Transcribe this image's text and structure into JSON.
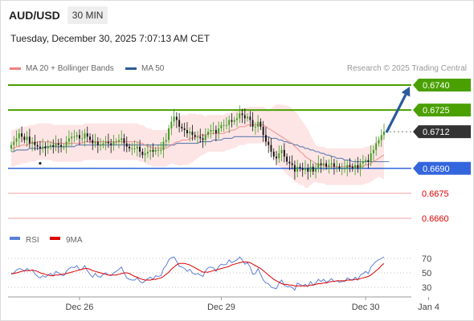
{
  "header": {
    "pair": "AUD/USD",
    "timeframe": "30 MIN",
    "datetime": "Tuesday, December 30, 2025 7:07:13 AM CET"
  },
  "legend": {
    "ma20_label": "MA 20 + Bollinger Bands",
    "ma20_color": "#f08080",
    "ma50_label": "MA 50",
    "ma50_color": "#2c5a9c"
  },
  "credit": "Research © 2025 Trading Central",
  "colors": {
    "green": "#4aa000",
    "blue": "#3366dd",
    "red": "#dd0000",
    "bull": "#3a9a1a",
    "bear": "#111111",
    "arrow": "#2c5a9c",
    "current": "#333333"
  },
  "chart_data": [
    {
      "type": "candlestick",
      "title": "AUD/USD 30 MIN",
      "ylim": [
        0.665,
        0.6745
      ],
      "x_ticks": [
        "Dec 26",
        "Dec 29",
        "Dec 30",
        "Jan 4"
      ],
      "x_tick_index": [
        26,
        80,
        135,
        159
      ],
      "levels": [
        {
          "value": 0.674,
          "label": "0.6740",
          "kind": "resistance"
        },
        {
          "value": 0.6725,
          "label": "0.6725",
          "kind": "resistance"
        },
        {
          "value": 0.6712,
          "label": "0.6712",
          "kind": "current"
        },
        {
          "value": 0.669,
          "label": "0.6690",
          "kind": "pivot"
        },
        {
          "value": 0.6675,
          "label": "0.6675",
          "kind": "support"
        },
        {
          "value": 0.666,
          "label": "0.6660",
          "kind": "support"
        }
      ],
      "close": [
        0.6704,
        0.6706,
        0.6708,
        0.6711,
        0.6709,
        0.6707,
        0.6709,
        0.6705,
        0.6706,
        0.6704,
        0.6703,
        0.6702,
        0.6703,
        0.6702,
        0.6703,
        0.6704,
        0.6703,
        0.6705,
        0.6704,
        0.6703,
        0.6703,
        0.6706,
        0.6708,
        0.6709,
        0.6709,
        0.671,
        0.6708,
        0.6708,
        0.6711,
        0.6709,
        0.6707,
        0.6705,
        0.6706,
        0.6704,
        0.6704,
        0.6705,
        0.6706,
        0.6705,
        0.6704,
        0.6706,
        0.6706,
        0.6707,
        0.6708,
        0.6705,
        0.6703,
        0.6702,
        0.6702,
        0.6702,
        0.6703,
        0.67,
        0.6698,
        0.6699,
        0.67,
        0.6701,
        0.67,
        0.6701,
        0.6701,
        0.6701,
        0.6706,
        0.6707,
        0.6714,
        0.6718,
        0.6721,
        0.6719,
        0.6715,
        0.6714,
        0.6713,
        0.6711,
        0.6712,
        0.671,
        0.6709,
        0.6709,
        0.6708,
        0.6707,
        0.671,
        0.6712,
        0.6713,
        0.6713,
        0.6711,
        0.6714,
        0.6716,
        0.6716,
        0.6716,
        0.6719,
        0.6718,
        0.6719,
        0.672,
        0.6723,
        0.6722,
        0.672,
        0.6721,
        0.6719,
        0.6715,
        0.6715,
        0.6718,
        0.6715,
        0.671,
        0.6706,
        0.6704,
        0.67,
        0.6697,
        0.6696,
        0.6699,
        0.6701,
        0.6697,
        0.6694,
        0.6693,
        0.6692,
        0.6688,
        0.6691,
        0.669,
        0.6689,
        0.669,
        0.6688,
        0.6691,
        0.6688,
        0.669,
        0.6693,
        0.6692,
        0.6693,
        0.6691,
        0.6692,
        0.6693,
        0.6691,
        0.6691,
        0.669,
        0.669,
        0.669,
        0.6692,
        0.6691,
        0.669,
        0.6692,
        0.669,
        0.6693,
        0.6694,
        0.6695,
        0.6694,
        0.6699,
        0.6701,
        0.6705,
        0.6707,
        0.671,
        0.6712
      ],
      "series": [
        {
          "name": "MA 20",
          "values": [
            0.6702,
            0.6702,
            0.6703,
            0.6703,
            0.6704,
            0.6704,
            0.6704,
            0.6705,
            0.6705,
            0.6705,
            0.6706,
            0.6706,
            0.6706,
            0.6706,
            0.6706,
            0.6706,
            0.6705,
            0.6705,
            0.6705,
            0.6705,
            0.6705,
            0.6705,
            0.6705,
            0.6705,
            0.6705,
            0.6705,
            0.6705,
            0.6705,
            0.6706,
            0.6706,
            0.6706,
            0.6706,
            0.6706,
            0.6706,
            0.6706,
            0.6706,
            0.6706,
            0.6706,
            0.6706,
            0.6706,
            0.6706,
            0.6706,
            0.6706,
            0.6706,
            0.6706,
            0.6706,
            0.6706,
            0.6706,
            0.6706,
            0.6705,
            0.6705,
            0.6704,
            0.6703,
            0.6703,
            0.6702,
            0.6702,
            0.6702,
            0.6702,
            0.6702,
            0.6702,
            0.6703,
            0.6704,
            0.6705,
            0.6706,
            0.6706,
            0.6707,
            0.6707,
            0.6707,
            0.6708,
            0.6708,
            0.6709,
            0.6709,
            0.671,
            0.671,
            0.671,
            0.6711,
            0.6711,
            0.6711,
            0.6711,
            0.6711,
            0.6711,
            0.6711,
            0.6712,
            0.6712,
            0.6713,
            0.6713,
            0.6714,
            0.6715,
            0.6715,
            0.6715,
            0.6716,
            0.6716,
            0.6716,
            0.6716,
            0.6716,
            0.6716,
            0.6716,
            0.6715,
            0.6714,
            0.6713,
            0.6712,
            0.6711,
            0.671,
            0.6709,
            0.6708,
            0.6707,
            0.6706,
            0.6705,
            0.6703,
            0.6702,
            0.67,
            0.6699,
            0.6697,
            0.6696,
            0.6695,
            0.6694,
            0.6693,
            0.6692,
            0.6692,
            0.6692,
            0.6691,
            0.6691,
            0.6691,
            0.6691,
            0.6691,
            0.6691,
            0.6691,
            0.6691,
            0.6691,
            0.6691,
            0.6691,
            0.6691,
            0.6691,
            0.6691,
            0.6691,
            0.6692,
            0.6692,
            0.6693,
            0.6694,
            0.6695,
            0.6696,
            0.6697,
            0.6698
          ]
        },
        {
          "name": "MA 50",
          "values": [
            0.67,
            0.67,
            0.6701,
            0.6701,
            0.6701,
            0.6701,
            0.6701,
            0.6702,
            0.6702,
            0.6702,
            0.6702,
            0.6702,
            0.6702,
            0.6703,
            0.6703,
            0.6703,
            0.6703,
            0.6703,
            0.6703,
            0.6703,
            0.6703,
            0.6703,
            0.6703,
            0.6703,
            0.6703,
            0.6704,
            0.6704,
            0.6704,
            0.6704,
            0.6704,
            0.6704,
            0.6704,
            0.6704,
            0.6704,
            0.6704,
            0.6704,
            0.6704,
            0.6704,
            0.6704,
            0.6704,
            0.6704,
            0.6704,
            0.6704,
            0.6704,
            0.6704,
            0.6704,
            0.6704,
            0.6704,
            0.6704,
            0.6704,
            0.6704,
            0.6704,
            0.6704,
            0.6704,
            0.6704,
            0.6704,
            0.6704,
            0.6704,
            0.6704,
            0.6704,
            0.6704,
            0.6704,
            0.6704,
            0.6705,
            0.6705,
            0.6705,
            0.6705,
            0.6705,
            0.6705,
            0.6705,
            0.6705,
            0.6705,
            0.6706,
            0.6706,
            0.6706,
            0.6706,
            0.6706,
            0.6707,
            0.6707,
            0.6707,
            0.6707,
            0.6708,
            0.6708,
            0.6708,
            0.6708,
            0.6709,
            0.6709,
            0.6709,
            0.6709,
            0.6709,
            0.6709,
            0.6709,
            0.6709,
            0.6709,
            0.6709,
            0.6709,
            0.6709,
            0.6709,
            0.6709,
            0.6708,
            0.6708,
            0.6708,
            0.6707,
            0.6707,
            0.6706,
            0.6706,
            0.6705,
            0.6705,
            0.6704,
            0.6704,
            0.6703,
            0.6703,
            0.6702,
            0.6702,
            0.6701,
            0.6701,
            0.67,
            0.67,
            0.6699,
            0.6699,
            0.6698,
            0.6698,
            0.6697,
            0.6697,
            0.6696,
            0.6696,
            0.6696,
            0.6695,
            0.6695,
            0.6695,
            0.6694,
            0.6694,
            0.6694,
            0.6694,
            0.6694,
            0.6694,
            0.6694,
            0.6694,
            0.6694,
            0.6694,
            0.6694,
            0.6694,
            0.6694,
            0.6694,
            0.6694
          ]
        }
      ],
      "projection": {
        "from": 0.6712,
        "to": 0.674
      }
    },
    {
      "type": "line",
      "title": "RSI",
      "ylim": [
        20,
        80
      ],
      "y_ticks": [
        30,
        50,
        70
      ],
      "series": [
        {
          "name": "RSI",
          "values": [
            48,
            50,
            54,
            56,
            55,
            52,
            56,
            53,
            54,
            49,
            45,
            43,
            46,
            44,
            47,
            49,
            46,
            52,
            50,
            47,
            46,
            52,
            56,
            58,
            57,
            60,
            54,
            55,
            60,
            53,
            48,
            44,
            49,
            45,
            44,
            48,
            50,
            47,
            46,
            50,
            52,
            55,
            58,
            50,
            43,
            41,
            40,
            40,
            43,
            38,
            36,
            39,
            42,
            44,
            41,
            46,
            45,
            46,
            56,
            60,
            68,
            71,
            72,
            66,
            59,
            58,
            56,
            52,
            55,
            50,
            48,
            49,
            47,
            45,
            53,
            57,
            58,
            57,
            52,
            59,
            62,
            61,
            62,
            68,
            64,
            66,
            68,
            72,
            68,
            62,
            64,
            58,
            48,
            49,
            56,
            48,
            40,
            36,
            35,
            30,
            29,
            28,
            36,
            40,
            33,
            31,
            31,
            30,
            26,
            36,
            34,
            32,
            34,
            31,
            38,
            33,
            36,
            41,
            38,
            41,
            37,
            39,
            42,
            38,
            39,
            37,
            38,
            38,
            43,
            41,
            40,
            44,
            40,
            47,
            49,
            52,
            49,
            58,
            62,
            66,
            68,
            70,
            72
          ]
        },
        {
          "name": "9MA",
          "values": [
            49,
            49,
            50,
            51,
            52,
            53,
            53,
            53,
            54,
            53,
            52,
            50,
            49,
            48,
            47,
            46,
            46,
            47,
            47,
            48,
            48,
            49,
            50,
            51,
            52,
            53,
            54,
            55,
            56,
            56,
            55,
            53,
            52,
            51,
            50,
            49,
            48,
            47,
            47,
            47,
            47,
            48,
            49,
            50,
            50,
            49,
            47,
            45,
            44,
            42,
            41,
            40,
            40,
            40,
            41,
            41,
            42,
            43,
            45,
            48,
            51,
            55,
            58,
            61,
            63,
            63,
            63,
            62,
            61,
            59,
            57,
            55,
            53,
            51,
            51,
            51,
            52,
            53,
            54,
            55,
            56,
            57,
            58,
            59,
            61,
            62,
            63,
            64,
            65,
            65,
            65,
            64,
            62,
            60,
            58,
            56,
            53,
            50,
            47,
            44,
            41,
            39,
            37,
            35,
            34,
            34,
            33,
            33,
            32,
            32,
            32,
            32,
            32,
            32,
            33,
            33,
            34,
            35,
            35,
            36,
            36,
            37,
            38,
            38,
            39,
            39,
            39,
            39,
            40,
            40,
            40,
            41,
            41,
            42,
            43,
            44,
            45,
            47,
            50,
            53,
            56,
            60,
            63
          ]
        }
      ]
    }
  ]
}
